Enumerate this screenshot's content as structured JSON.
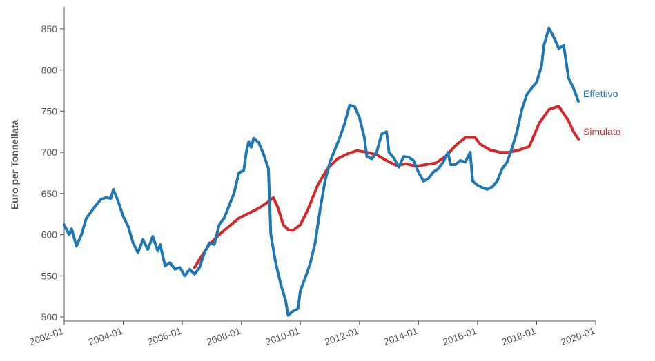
{
  "chart_data": {
    "type": "line",
    "title": "",
    "xlabel": "",
    "ylabel": "Euro per Tonnellata",
    "ylim": [
      495,
      875
    ],
    "xlim": [
      "2002-01",
      "2020-01"
    ],
    "x_ticks": [
      "2002-01",
      "2004-01",
      "2006-01",
      "2008-01",
      "2010-01",
      "2012-01",
      "2014-01",
      "2016-01",
      "2018-01",
      "2020-01"
    ],
    "y_ticks": [
      500,
      550,
      600,
      650,
      700,
      750,
      800,
      850
    ],
    "grid": false,
    "series": [
      {
        "name": "Effettivo",
        "color": "#1f77b4",
        "points": [
          [
            "2002-01",
            612
          ],
          [
            "2002-03",
            600
          ],
          [
            "2002-04",
            607
          ],
          [
            "2002-06",
            586
          ],
          [
            "2002-08",
            600
          ],
          [
            "2002-10",
            620
          ],
          [
            "2002-12",
            628
          ],
          [
            "2003-02",
            636
          ],
          [
            "2003-04",
            643
          ],
          [
            "2003-06",
            645
          ],
          [
            "2003-08",
            644
          ],
          [
            "2003-09",
            655
          ],
          [
            "2003-11",
            640
          ],
          [
            "2004-01",
            622
          ],
          [
            "2004-03",
            610
          ],
          [
            "2004-05",
            590
          ],
          [
            "2004-07",
            578
          ],
          [
            "2004-09",
            594
          ],
          [
            "2004-11",
            582
          ],
          [
            "2005-01",
            598
          ],
          [
            "2005-03",
            580
          ],
          [
            "2005-04",
            588
          ],
          [
            "2005-06",
            562
          ],
          [
            "2005-08",
            566
          ],
          [
            "2005-10",
            558
          ],
          [
            "2005-12",
            560
          ],
          [
            "2006-02",
            550
          ],
          [
            "2006-04",
            558
          ],
          [
            "2006-06",
            552
          ],
          [
            "2006-08",
            560
          ],
          [
            "2006-10",
            578
          ],
          [
            "2006-12",
            590
          ],
          [
            "2007-02",
            588
          ],
          [
            "2007-04",
            612
          ],
          [
            "2007-06",
            620
          ],
          [
            "2007-08",
            635
          ],
          [
            "2007-10",
            650
          ],
          [
            "2007-12",
            675
          ],
          [
            "2008-02",
            678
          ],
          [
            "2008-03",
            700
          ],
          [
            "2008-04",
            713
          ],
          [
            "2008-05",
            706
          ],
          [
            "2008-06",
            717
          ],
          [
            "2008-08",
            712
          ],
          [
            "2008-10",
            698
          ],
          [
            "2008-12",
            680
          ],
          [
            "2009-01",
            600
          ],
          [
            "2009-03",
            565
          ],
          [
            "2009-05",
            540
          ],
          [
            "2009-07",
            520
          ],
          [
            "2009-08",
            502
          ],
          [
            "2009-10",
            507
          ],
          [
            "2009-12",
            510
          ],
          [
            "2010-01",
            532
          ],
          [
            "2010-03",
            548
          ],
          [
            "2010-05",
            565
          ],
          [
            "2010-07",
            590
          ],
          [
            "2010-09",
            630
          ],
          [
            "2010-11",
            665
          ],
          [
            "2011-01",
            688
          ],
          [
            "2011-03",
            703
          ],
          [
            "2011-05",
            718
          ],
          [
            "2011-07",
            735
          ],
          [
            "2011-09",
            757
          ],
          [
            "2011-11",
            756
          ],
          [
            "2012-01",
            742
          ],
          [
            "2012-03",
            718
          ],
          [
            "2012-04",
            695
          ],
          [
            "2012-06",
            692
          ],
          [
            "2012-08",
            700
          ],
          [
            "2012-10",
            722
          ],
          [
            "2012-12",
            725
          ],
          [
            "2013-01",
            700
          ],
          [
            "2013-03",
            693
          ],
          [
            "2013-05",
            682
          ],
          [
            "2013-07",
            695
          ],
          [
            "2013-09",
            694
          ],
          [
            "2013-11",
            690
          ],
          [
            "2014-01",
            676
          ],
          [
            "2014-03",
            665
          ],
          [
            "2014-05",
            668
          ],
          [
            "2014-07",
            676
          ],
          [
            "2014-09",
            680
          ],
          [
            "2014-11",
            688
          ],
          [
            "2015-01",
            700
          ],
          [
            "2015-02",
            685
          ],
          [
            "2015-04",
            685
          ],
          [
            "2015-06",
            690
          ],
          [
            "2015-08",
            688
          ],
          [
            "2015-10",
            700
          ],
          [
            "2015-11",
            665
          ],
          [
            "2016-01",
            660
          ],
          [
            "2016-03",
            657
          ],
          [
            "2016-05",
            655
          ],
          [
            "2016-07",
            658
          ],
          [
            "2016-09",
            665
          ],
          [
            "2016-11",
            680
          ],
          [
            "2017-01",
            688
          ],
          [
            "2017-03",
            705
          ],
          [
            "2017-05",
            725
          ],
          [
            "2017-07",
            752
          ],
          [
            "2017-09",
            770
          ],
          [
            "2017-11",
            778
          ],
          [
            "2018-01",
            785
          ],
          [
            "2018-03",
            805
          ],
          [
            "2018-04",
            830
          ],
          [
            "2018-06",
            851
          ],
          [
            "2018-08",
            840
          ],
          [
            "2018-10",
            826
          ],
          [
            "2018-12",
            830
          ],
          [
            "2019-02",
            790
          ],
          [
            "2019-04",
            778
          ],
          [
            "2019-06",
            762
          ]
        ]
      },
      {
        "name": "Simulato",
        "color": "#d62728",
        "points": [
          [
            "2006-06",
            560
          ],
          [
            "2006-08",
            570
          ],
          [
            "2006-12",
            588
          ],
          [
            "2007-04",
            600
          ],
          [
            "2007-08",
            610
          ],
          [
            "2007-12",
            620
          ],
          [
            "2008-04",
            626
          ],
          [
            "2008-08",
            632
          ],
          [
            "2008-12",
            640
          ],
          [
            "2009-02",
            645
          ],
          [
            "2009-04",
            632
          ],
          [
            "2009-06",
            612
          ],
          [
            "2009-08",
            606
          ],
          [
            "2009-10",
            605
          ],
          [
            "2010-01",
            612
          ],
          [
            "2010-04",
            630
          ],
          [
            "2010-08",
            660
          ],
          [
            "2010-12",
            680
          ],
          [
            "2011-04",
            692
          ],
          [
            "2011-08",
            698
          ],
          [
            "2011-12",
            702
          ],
          [
            "2012-04",
            700
          ],
          [
            "2012-08",
            697
          ],
          [
            "2012-12",
            690
          ],
          [
            "2013-04",
            684
          ],
          [
            "2013-08",
            686
          ],
          [
            "2013-12",
            683
          ],
          [
            "2014-04",
            685
          ],
          [
            "2014-08",
            687
          ],
          [
            "2014-12",
            695
          ],
          [
            "2015-04",
            708
          ],
          [
            "2015-08",
            718
          ],
          [
            "2015-12",
            718
          ],
          [
            "2016-02",
            710
          ],
          [
            "2016-06",
            703
          ],
          [
            "2016-10",
            700
          ],
          [
            "2017-02",
            700
          ],
          [
            "2017-06",
            703
          ],
          [
            "2017-10",
            707
          ],
          [
            "2018-02",
            735
          ],
          [
            "2018-06",
            752
          ],
          [
            "2018-10",
            756
          ],
          [
            "2019-02",
            738
          ],
          [
            "2019-04",
            725
          ],
          [
            "2019-06",
            716
          ]
        ]
      }
    ],
    "colors": {
      "axis": "#555555"
    }
  }
}
